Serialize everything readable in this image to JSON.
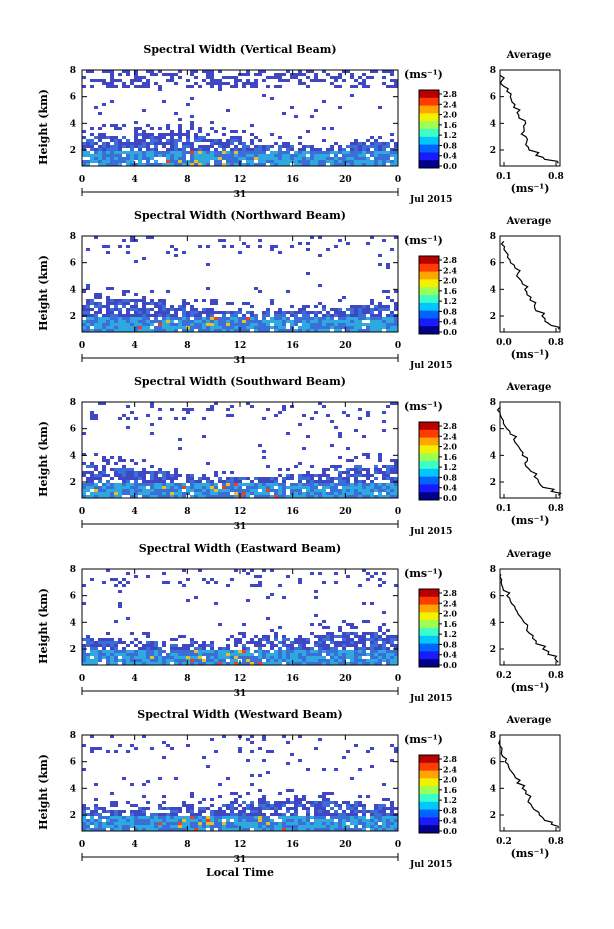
{
  "figure": {
    "xlabel": "Local Time",
    "date_label": "Jul 2015",
    "day_label": "31",
    "unit_label": "(ms⁻¹)",
    "average_title": "Average",
    "ylabel": "Height (km)"
  },
  "colorbar": {
    "ticks": [
      "2.8",
      "2.4",
      "2.0",
      "1.6",
      "1.2",
      "0.8",
      "0.4",
      "0.0"
    ],
    "colors": [
      "#b80000",
      "#ff3c00",
      "#ffa500",
      "#f2f200",
      "#9bff55",
      "#3cffc8",
      "#00c8ff",
      "#0064ff",
      "#1a1aff",
      "#00008a"
    ]
  },
  "colors": {
    "noise": "#3f47c4",
    "mid": "#3b6fd8",
    "warm": "#e8c020",
    "hot": "#e84020"
  },
  "chart_data": [
    {
      "type": "heatmap",
      "title": "Spectral Width (Vertical Beam)",
      "xlabel": "Local Time",
      "ylabel": "Height (km)",
      "xlim": [
        0,
        24
      ],
      "ylim": [
        0.8,
        8
      ],
      "x_ticks": [
        "0",
        "4",
        "8",
        "12",
        "16",
        "20",
        "0"
      ],
      "y_ticks": [
        "8",
        "6",
        "4",
        "2"
      ],
      "colorbar_range": [
        0.0,
        3.0
      ],
      "avg_xlim": [
        0.1,
        0.8
      ],
      "avg_xticks": [
        "0.1",
        "0.8"
      ],
      "avg_profile": {
        "height": [
          1.0,
          1.3,
          1.6,
          2.0,
          2.4,
          2.8,
          3.2,
          3.6,
          4.0,
          4.4,
          4.8,
          5.2,
          5.6,
          6.0,
          6.4,
          6.8,
          7.2,
          7.6
        ],
        "width": [
          0.78,
          0.62,
          0.52,
          0.44,
          0.4,
          0.42,
          0.35,
          0.38,
          0.4,
          0.32,
          0.3,
          0.26,
          0.24,
          0.22,
          0.18,
          0.14,
          0.12,
          0.1
        ]
      }
    },
    {
      "type": "heatmap",
      "title": "Spectral Width (Northward Beam)",
      "xlabel": "Local Time",
      "ylabel": "Height (km)",
      "xlim": [
        0,
        24
      ],
      "ylim": [
        0.8,
        8
      ],
      "x_ticks": [
        "0",
        "4",
        "8",
        "12",
        "16",
        "20",
        "0"
      ],
      "y_ticks": [
        "8",
        "6",
        "4",
        "2"
      ],
      "colorbar_range": [
        0.0,
        3.0
      ],
      "avg_xlim": [
        0.0,
        0.8
      ],
      "avg_xticks": [
        "0.0",
        "0.8"
      ],
      "avg_profile": {
        "height": [
          1.0,
          1.3,
          1.6,
          2.0,
          2.4,
          2.8,
          3.2,
          3.6,
          4.0,
          4.4,
          4.8,
          5.2,
          5.6,
          6.0,
          6.4,
          6.8,
          7.2,
          7.6
        ],
        "width": [
          0.78,
          0.68,
          0.6,
          0.56,
          0.48,
          0.46,
          0.4,
          0.36,
          0.33,
          0.3,
          0.26,
          0.24,
          0.2,
          0.14,
          0.1,
          0.08,
          0.06,
          0.05
        ]
      }
    },
    {
      "type": "heatmap",
      "title": "Spectral Width (Southward Beam)",
      "xlabel": "Local Time",
      "ylabel": "Height (km)",
      "xlim": [
        0,
        24
      ],
      "ylim": [
        0.8,
        8
      ],
      "x_ticks": [
        "0",
        "4",
        "8",
        "12",
        "16",
        "20",
        "0"
      ],
      "y_ticks": [
        "8",
        "6",
        "4",
        "2"
      ],
      "colorbar_range": [
        0.0,
        3.0
      ],
      "avg_xlim": [
        0.1,
        0.8
      ],
      "avg_xticks": [
        "0.1",
        "0.8"
      ],
      "avg_profile": {
        "height": [
          1.0,
          1.3,
          1.6,
          2.0,
          2.4,
          2.8,
          3.2,
          3.6,
          4.0,
          4.4,
          4.8,
          5.2,
          5.6,
          6.0,
          6.4,
          6.8,
          7.2,
          7.6
        ],
        "width": [
          0.78,
          0.7,
          0.6,
          0.55,
          0.5,
          0.46,
          0.4,
          0.42,
          0.36,
          0.34,
          0.3,
          0.26,
          0.22,
          0.18,
          0.14,
          0.12,
          0.1,
          0.1
        ]
      }
    },
    {
      "type": "heatmap",
      "title": "Spectral Width (Eastward Beam)",
      "xlabel": "Local Time",
      "ylabel": "Height (km)",
      "xlim": [
        0,
        24
      ],
      "ylim": [
        0.8,
        8
      ],
      "x_ticks": [
        "0",
        "4",
        "8",
        "12",
        "16",
        "20",
        "0"
      ],
      "y_ticks": [
        "8",
        "6",
        "4",
        "2"
      ],
      "colorbar_range": [
        0.0,
        3.0
      ],
      "avg_xlim": [
        0.1,
        0.8
      ],
      "avg_xticks": [
        "0.2",
        "0.8"
      ],
      "avg_profile": {
        "height": [
          1.0,
          1.3,
          1.6,
          2.0,
          2.4,
          2.8,
          3.2,
          3.6,
          4.0,
          4.4,
          4.8,
          5.2,
          5.6,
          6.0,
          6.4,
          6.8,
          7.2,
          7.6
        ],
        "width": [
          0.78,
          0.74,
          0.66,
          0.6,
          0.52,
          0.48,
          0.44,
          0.42,
          0.38,
          0.34,
          0.3,
          0.27,
          0.22,
          0.18,
          0.14,
          0.12,
          0.12,
          0.11
        ]
      }
    },
    {
      "type": "heatmap",
      "title": "Spectral Width (Westward Beam)",
      "xlabel": "Local Time",
      "ylabel": "Height (km)",
      "xlim": [
        0,
        24
      ],
      "ylim": [
        0.8,
        8
      ],
      "x_ticks": [
        "0",
        "4",
        "8",
        "12",
        "16",
        "20",
        "0"
      ],
      "y_ticks": [
        "8",
        "6",
        "4",
        "2"
      ],
      "colorbar_range": [
        0.0,
        3.0
      ],
      "avg_xlim": [
        0.1,
        0.8
      ],
      "avg_xticks": [
        "0.2",
        "0.8"
      ],
      "avg_profile": {
        "height": [
          1.0,
          1.3,
          1.6,
          2.0,
          2.4,
          2.8,
          3.2,
          3.6,
          4.0,
          4.4,
          4.8,
          5.2,
          5.6,
          6.0,
          6.4,
          6.8,
          7.2,
          7.6
        ],
        "width": [
          0.78,
          0.7,
          0.62,
          0.56,
          0.5,
          0.46,
          0.44,
          0.4,
          0.36,
          0.3,
          0.28,
          0.24,
          0.2,
          0.16,
          0.13,
          0.12,
          0.1,
          0.1
        ]
      }
    }
  ]
}
